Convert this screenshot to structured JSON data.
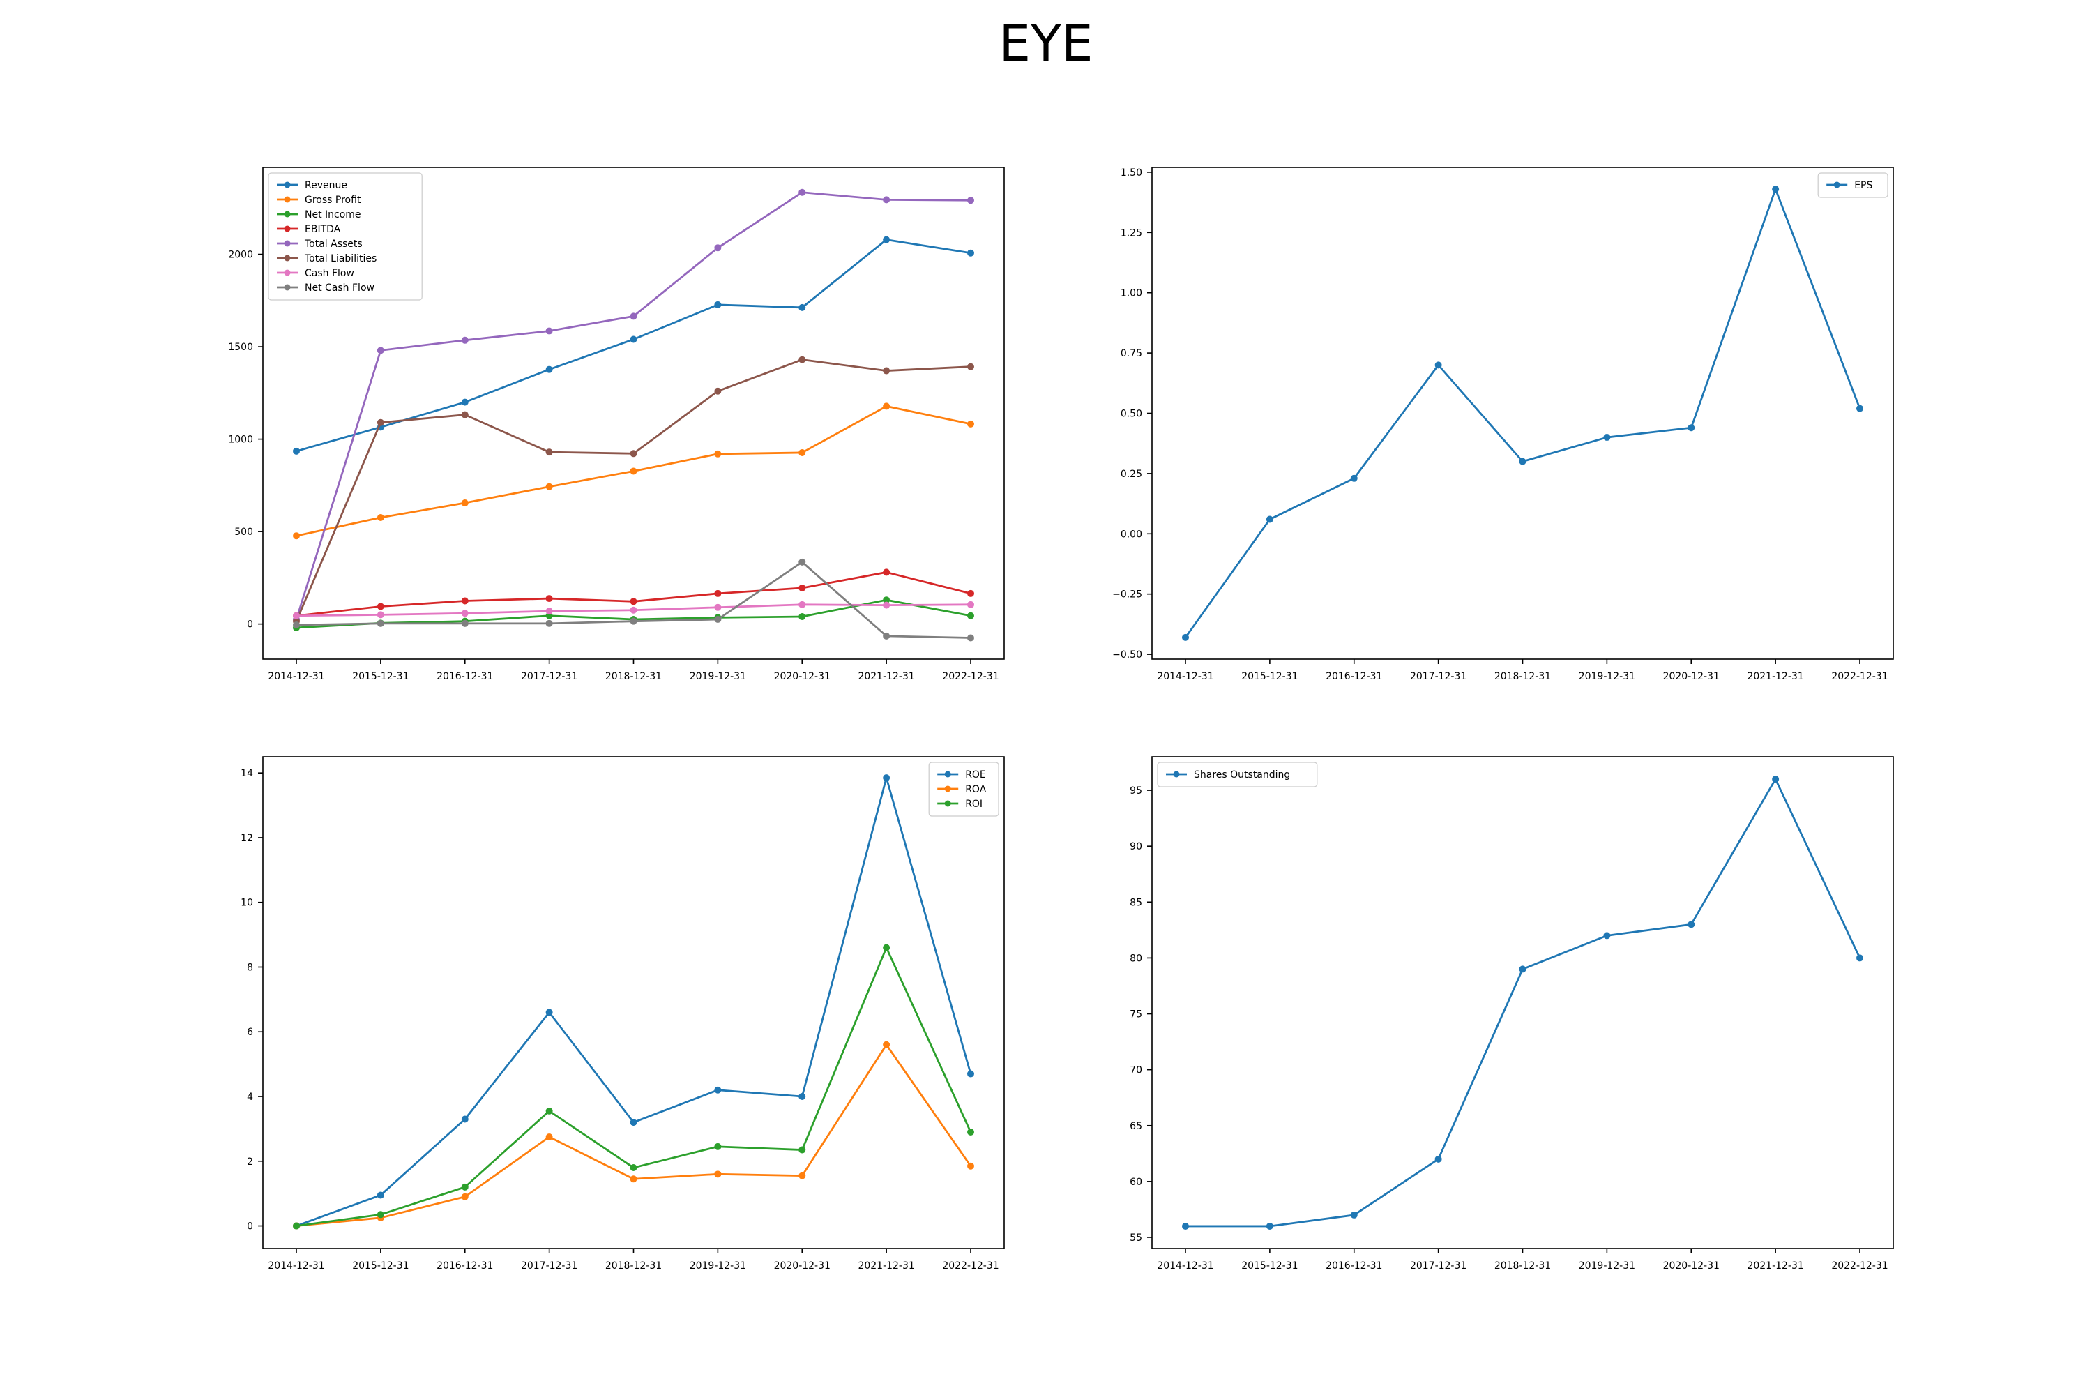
{
  "title": "EYE",
  "chart_data": [
    {
      "type": "line",
      "x": [
        "2014-12-31",
        "2015-12-31",
        "2016-12-31",
        "2017-12-31",
        "2018-12-31",
        "2019-12-31",
        "2020-12-31",
        "2021-12-31",
        "2022-12-31"
      ],
      "ylim": [
        -190,
        2470
      ],
      "yticks": [
        0,
        500,
        1000,
        1500,
        2000
      ],
      "grid": false,
      "legend": "upper-left",
      "series": [
        {
          "name": "Revenue",
          "color": "#1f77b4",
          "values": [
            935,
            1065,
            1200,
            1377,
            1540,
            1727,
            1712,
            2079,
            2007
          ]
        },
        {
          "name": "Gross Profit",
          "color": "#ff7f0e",
          "values": [
            477,
            576,
            655,
            743,
            827,
            920,
            927,
            1178,
            1082
          ]
        },
        {
          "name": "Net Income",
          "color": "#2ca02c",
          "values": [
            -20,
            5,
            15,
            45,
            25,
            35,
            40,
            130,
            45
          ]
        },
        {
          "name": "EBITDA",
          "color": "#d62728",
          "values": [
            45,
            95,
            125,
            138,
            122,
            165,
            195,
            280,
            165
          ]
        },
        {
          "name": "Total Assets",
          "color": "#9467bd",
          "values": [
            25,
            1480,
            1535,
            1585,
            1665,
            2035,
            2335,
            2295,
            2292
          ]
        },
        {
          "name": "Total Liabilities",
          "color": "#8c564b",
          "values": [
            15,
            1090,
            1132,
            930,
            922,
            1260,
            1430,
            1370,
            1392
          ]
        },
        {
          "name": "Cash Flow",
          "color": "#e377c2",
          "values": [
            45,
            50,
            58,
            70,
            75,
            90,
            105,
            102,
            105
          ]
        },
        {
          "name": "Net Cash Flow",
          "color": "#7f7f7f",
          "values": [
            -5,
            3,
            3,
            3,
            15,
            25,
            335,
            -65,
            -75
          ]
        }
      ]
    },
    {
      "type": "line",
      "x": [
        "2014-12-31",
        "2015-12-31",
        "2016-12-31",
        "2017-12-31",
        "2018-12-31",
        "2019-12-31",
        "2020-12-31",
        "2021-12-31",
        "2022-12-31"
      ],
      "ylim": [
        -0.52,
        1.52
      ],
      "yticks": [
        -0.5,
        -0.25,
        0.0,
        0.25,
        0.5,
        0.75,
        1.0,
        1.25,
        1.5
      ],
      "ytick_labels": [
        "−0.50",
        "−0.25",
        "0.00",
        "0.25",
        "0.50",
        "0.75",
        "1.00",
        "1.25",
        "1.50"
      ],
      "grid": false,
      "legend": "upper-right",
      "series": [
        {
          "name": "EPS",
          "color": "#1f77b4",
          "values": [
            -0.43,
            0.06,
            0.23,
            0.7,
            0.3,
            0.4,
            0.44,
            1.43,
            0.52
          ]
        }
      ]
    },
    {
      "type": "line",
      "x": [
        "2014-12-31",
        "2015-12-31",
        "2016-12-31",
        "2017-12-31",
        "2018-12-31",
        "2019-12-31",
        "2020-12-31",
        "2021-12-31",
        "2022-12-31"
      ],
      "ylim": [
        -0.7,
        14.5
      ],
      "yticks": [
        0,
        2,
        4,
        6,
        8,
        10,
        12,
        14
      ],
      "grid": false,
      "legend": "upper-right",
      "series": [
        {
          "name": "ROE",
          "color": "#1f77b4",
          "values": [
            0.0,
            0.95,
            3.3,
            6.6,
            3.2,
            4.2,
            4.0,
            13.85,
            4.7
          ]
        },
        {
          "name": "ROA",
          "color": "#ff7f0e",
          "values": [
            0.0,
            0.25,
            0.9,
            2.75,
            1.45,
            1.6,
            1.55,
            5.6,
            1.85
          ]
        },
        {
          "name": "ROI",
          "color": "#2ca02c",
          "values": [
            0.0,
            0.35,
            1.2,
            3.55,
            1.8,
            2.45,
            2.35,
            8.6,
            2.9
          ]
        }
      ]
    },
    {
      "type": "line",
      "x": [
        "2014-12-31",
        "2015-12-31",
        "2016-12-31",
        "2017-12-31",
        "2018-12-31",
        "2019-12-31",
        "2020-12-31",
        "2021-12-31",
        "2022-12-31"
      ],
      "ylim": [
        54,
        98
      ],
      "yticks": [
        55,
        60,
        65,
        70,
        75,
        80,
        85,
        90,
        95
      ],
      "grid": false,
      "legend": "upper-left",
      "series": [
        {
          "name": "Shares Outstanding",
          "color": "#1f77b4",
          "values": [
            56,
            56,
            57,
            62,
            79,
            82,
            83,
            96,
            80
          ]
        }
      ]
    }
  ]
}
